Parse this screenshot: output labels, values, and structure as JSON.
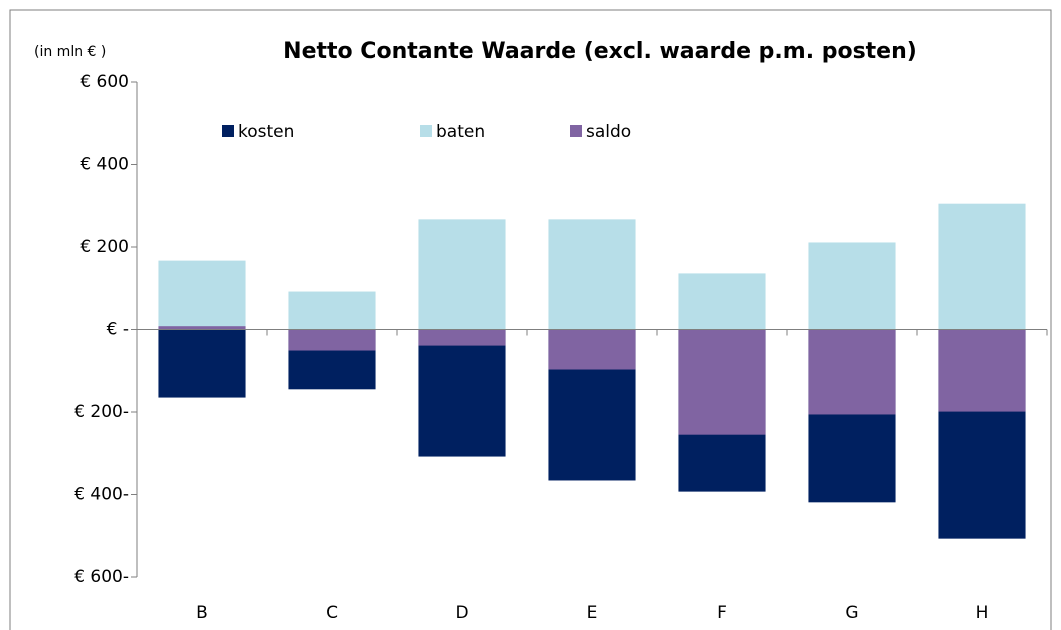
{
  "chart_data": {
    "type": "bar",
    "title": "Netto Contante Waarde (excl. waarde p.m. posten)",
    "y_label": "(in mln € )",
    "categories": [
      "B",
      "C",
      "D",
      "E",
      "F",
      "G",
      "H"
    ],
    "series": [
      {
        "name": "kosten",
        "color": "#002060",
        "values": [
          -165,
          -145,
          -308,
          -366,
          -393,
          -419,
          -507
        ]
      },
      {
        "name": "baten",
        "color": "#b7dee8",
        "values": [
          167,
          92,
          267,
          267,
          136,
          211,
          305
        ]
      },
      {
        "name": "saldo",
        "color": "#8064a2",
        "values": [
          8,
          -51,
          -39,
          -97,
          -255,
          -206,
          -199
        ]
      }
    ],
    "ylim": [
      -600,
      600
    ],
    "yticks": [
      {
        "value": 600,
        "label": "€ 600"
      },
      {
        "value": 400,
        "label": "€ 400"
      },
      {
        "value": 200,
        "label": "€ 200"
      },
      {
        "value": 0,
        "label": "€ -"
      },
      {
        "value": -200,
        "label": "€ 200-"
      },
      {
        "value": -400,
        "label": "€ 400-"
      },
      {
        "value": -600,
        "label": "€ 600-"
      }
    ],
    "grid": false,
    "legend": "top"
  }
}
